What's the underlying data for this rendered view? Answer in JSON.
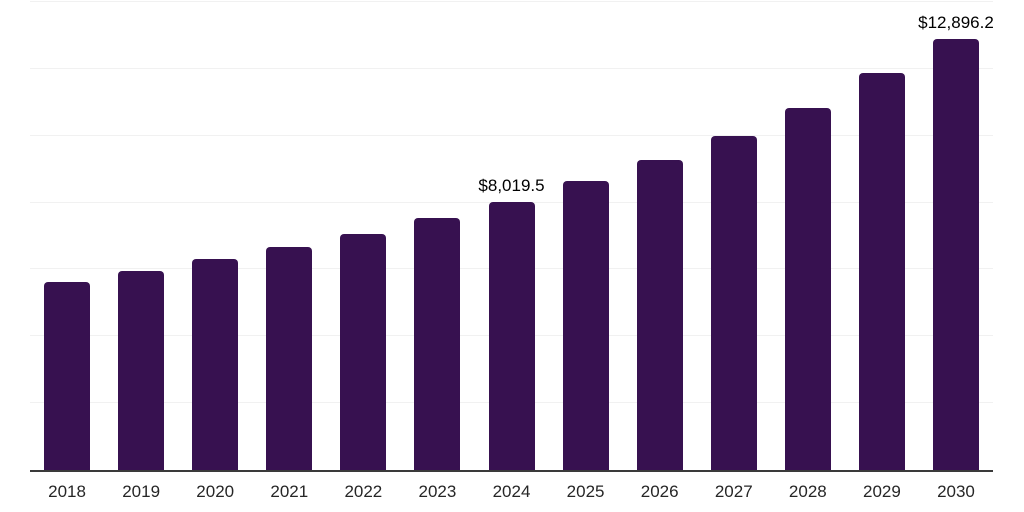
{
  "chart_data": {
    "type": "bar",
    "categories": [
      "2018",
      "2019",
      "2020",
      "2021",
      "2022",
      "2023",
      "2024",
      "2025",
      "2026",
      "2027",
      "2028",
      "2029",
      "2030"
    ],
    "values": [
      5620,
      5950,
      6310,
      6680,
      7060,
      7550,
      8019.5,
      8640,
      9280,
      9990,
      10820,
      11870,
      12896.2
    ],
    "annotations": [
      {
        "category": "2024",
        "text": "$8,019.5"
      },
      {
        "category": "2030",
        "text": "$12,896.2"
      }
    ],
    "title": "",
    "xlabel": "",
    "ylabel": "",
    "ylim": [
      0,
      14000
    ],
    "grid_interval": 2000,
    "grid": "on",
    "legend_position": "none",
    "y_tick_labels_visible": false,
    "colors": {
      "bar": "#371150",
      "gridline": "#f1f1f1",
      "axis_line": "#3a3a3a",
      "tick_label": "#262626",
      "data_label": "#000000",
      "background": "#ffffff"
    }
  }
}
